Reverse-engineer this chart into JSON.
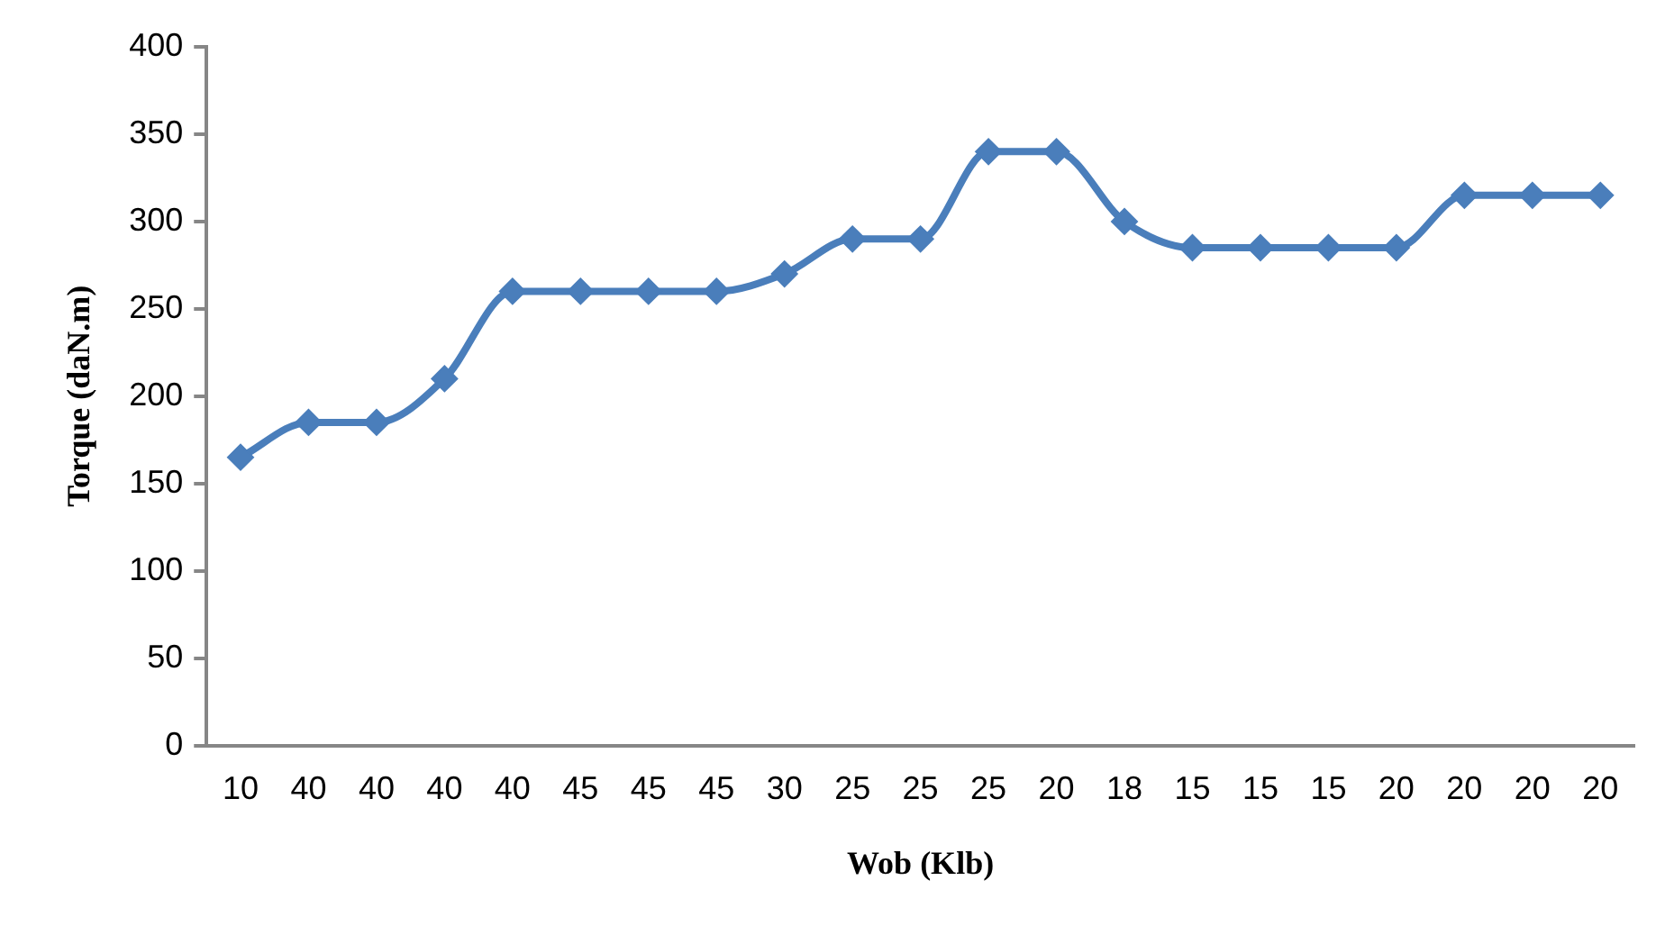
{
  "chart_data": {
    "type": "line",
    "xlabel": "Wob (Klb)",
    "ylabel": "Torque (daN.m)",
    "categories": [
      "10",
      "40",
      "40",
      "40",
      "40",
      "45",
      "45",
      "45",
      "30",
      "25",
      "25",
      "25",
      "20",
      "18",
      "15",
      "15",
      "15",
      "20",
      "20",
      "20",
      "20"
    ],
    "series": [
      {
        "color": "#4a7ebb",
        "values": [
          165,
          185,
          185,
          210,
          260,
          260,
          260,
          260,
          270,
          290,
          290,
          340,
          340,
          300,
          285,
          285,
          285,
          285,
          315,
          315,
          315
        ]
      }
    ],
    "ylim": [
      0,
      400
    ],
    "yticks": [
      0,
      50,
      100,
      150,
      200,
      250,
      300,
      350,
      400
    ],
    "grid": false,
    "legend": false,
    "marker": "diamond",
    "line_style": "solid"
  }
}
